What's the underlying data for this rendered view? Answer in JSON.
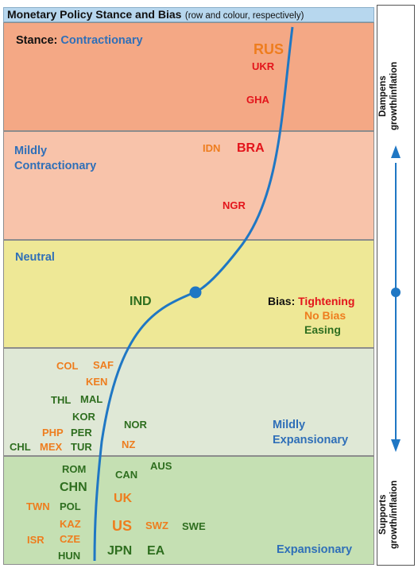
{
  "title": {
    "main": "Monetary Policy Stance and Bias",
    "sub": "(row and colour, respectively)"
  },
  "bands": {
    "contractionary": {
      "prefix": "Stance:",
      "label": "Contractionary"
    },
    "mildly_contractionary": {
      "line1": "Mildly",
      "line2": "Contractionary"
    },
    "neutral": {
      "label": "Neutral"
    },
    "mildly_expansionary": {
      "line1": "Mildly",
      "line2": "Expansionary"
    },
    "expansionary": {
      "label": "Expansionary"
    }
  },
  "legend": {
    "prefix": "Bias:",
    "tightening": "Tightening",
    "no_bias": "No Bias",
    "easing": "Easing"
  },
  "countries": {
    "rus": "RUS",
    "ukr": "UKR",
    "gha": "GHA",
    "idn": "IDN",
    "bra": "BRA",
    "ngr": "NGR",
    "ind": "IND",
    "col": "COL",
    "saf": "SAF",
    "ken": "KEN",
    "thl": "THL",
    "mal": "MAL",
    "kor": "KOR",
    "php": "PHP",
    "per": "PER",
    "chl": "CHL",
    "mex": "MEX",
    "tur": "TUR",
    "nor": "NOR",
    "nz": "NZ",
    "rom": "ROM",
    "aus": "AUS",
    "chn": "CHN",
    "can": "CAN",
    "twn": "TWN",
    "pol": "POL",
    "uk": "UK",
    "kaz": "KAZ",
    "us": "US",
    "swz": "SWZ",
    "swe": "SWE",
    "isr": "ISR",
    "cze": "CZE",
    "hun": "HUN",
    "jpn": "JPN",
    "ea": "EA"
  },
  "side": {
    "top_line1": "Dampens",
    "top_line2": "growth/inflation",
    "bottom_line1": "Supports",
    "bottom_line2": "growth/inflation"
  },
  "colors": {
    "tightening": "#e3141b",
    "no_bias": "#ee7d1e",
    "easing": "#2e6e1f",
    "curve": "#1f77c4",
    "label_blue": "#2f6fb8"
  },
  "icons": {
    "side_arrow": "double-headed-arrow-icon",
    "neutral_marker": "dot-icon"
  }
}
